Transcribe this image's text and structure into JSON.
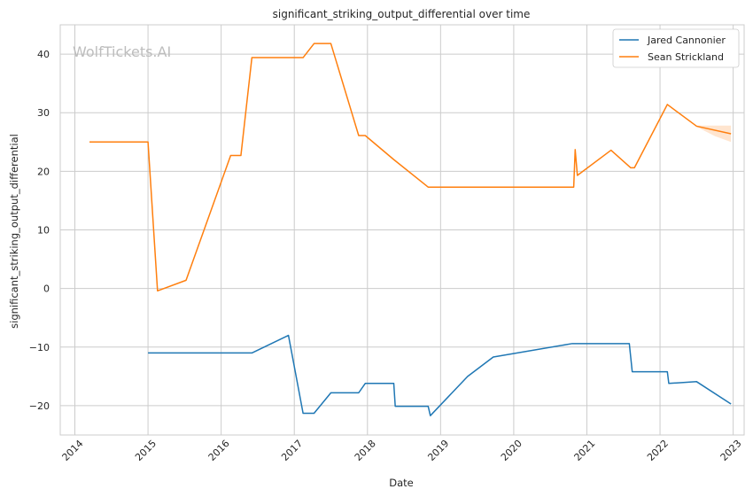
{
  "chart_data": {
    "type": "line",
    "title": "significant_striking_output_differential over time",
    "xlabel": "Date",
    "ylabel": "significant_striking_output_differential",
    "watermark": "WolfTickets.AI",
    "xlim": [
      2013.8,
      2023.15
    ],
    "ylim": [
      -25,
      45
    ],
    "x_ticks": [
      2014,
      2015,
      2016,
      2017,
      2018,
      2019,
      2020,
      2021,
      2022,
      2023
    ],
    "x_tick_labels": [
      "2014",
      "2015",
      "2016",
      "2017",
      "2018",
      "2019",
      "2020",
      "2021",
      "2022",
      "2023"
    ],
    "y_ticks": [
      -20,
      -10,
      0,
      10,
      20,
      30,
      40
    ],
    "y_tick_labels": [
      "−20",
      "−10",
      "0",
      "10",
      "20",
      "30",
      "40"
    ],
    "grid": true,
    "legend_position": "top-right",
    "series": [
      {
        "name": "Jared Cannonier",
        "color": "#1f77b4",
        "points": [
          [
            2015.0,
            -11.0
          ],
          [
            2016.42,
            -11.0
          ],
          [
            2016.92,
            -8.0
          ],
          [
            2017.12,
            -21.3
          ],
          [
            2017.27,
            -21.3
          ],
          [
            2017.5,
            -17.8
          ],
          [
            2017.88,
            -17.8
          ],
          [
            2017.97,
            -16.2
          ],
          [
            2018.36,
            -16.2
          ],
          [
            2018.38,
            -20.1
          ],
          [
            2018.83,
            -20.1
          ],
          [
            2018.86,
            -21.7
          ],
          [
            2019.37,
            -15.0
          ],
          [
            2019.72,
            -11.7
          ],
          [
            2020.8,
            -9.4
          ],
          [
            2021.58,
            -9.4
          ],
          [
            2021.62,
            -14.2
          ],
          [
            2022.1,
            -14.2
          ],
          [
            2022.12,
            -16.2
          ],
          [
            2022.5,
            -15.9
          ],
          [
            2022.97,
            -19.7
          ]
        ]
      },
      {
        "name": "Sean Strickland",
        "color": "#ff7f0e",
        "points": [
          [
            2014.2,
            25.0
          ],
          [
            2015.0,
            25.0
          ],
          [
            2015.13,
            -0.4
          ],
          [
            2015.52,
            1.4
          ],
          [
            2016.13,
            22.7
          ],
          [
            2016.27,
            22.7
          ],
          [
            2016.42,
            39.4
          ],
          [
            2017.12,
            39.4
          ],
          [
            2017.27,
            41.8
          ],
          [
            2017.5,
            41.8
          ],
          [
            2017.88,
            26.1
          ],
          [
            2017.97,
            26.1
          ],
          [
            2018.36,
            22.0
          ],
          [
            2018.83,
            17.3
          ],
          [
            2020.82,
            17.3
          ],
          [
            2020.84,
            23.7
          ],
          [
            2020.87,
            19.3
          ],
          [
            2021.33,
            23.6
          ],
          [
            2021.6,
            20.6
          ],
          [
            2021.65,
            20.6
          ],
          [
            2022.1,
            31.4
          ],
          [
            2022.5,
            27.7
          ],
          [
            2022.97,
            26.4
          ]
        ],
        "ci": {
          "x": [
            2022.5,
            2022.75,
            2022.97
          ],
          "upper": [
            27.8,
            27.8,
            27.8
          ],
          "lower": [
            27.6,
            26.0,
            25.0
          ]
        }
      }
    ]
  }
}
